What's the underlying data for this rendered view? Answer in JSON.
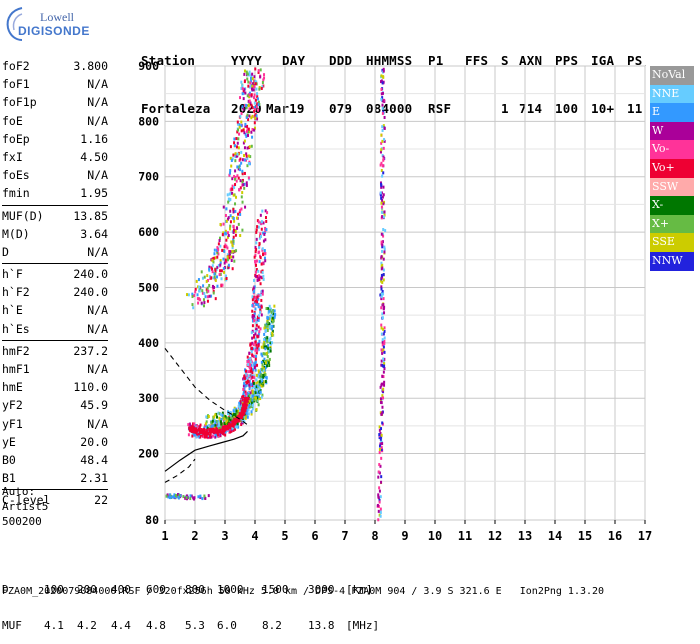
{
  "logo": {
    "line1": "Lowell",
    "line2": "DIGISONDE"
  },
  "header": {
    "labels": [
      "Station",
      "YYYY",
      "DAY",
      "DDD",
      "HHMMSS",
      "P1",
      "FFS",
      "S",
      "AXN",
      "PPS",
      "IGA",
      "PS"
    ],
    "values": [
      "Fortaleza",
      "2020",
      "Mar19",
      "079",
      "084000",
      "RSF",
      "",
      "1",
      "714",
      "100",
      "10+",
      "11"
    ]
  },
  "params": {
    "group1": [
      {
        "name": "foF2",
        "value": "3.800"
      },
      {
        "name": "foF1",
        "value": "N/A"
      },
      {
        "name": "foF1p",
        "value": "N/A"
      },
      {
        "name": "foE",
        "value": "N/A"
      },
      {
        "name": "foEp",
        "value": "1.16"
      },
      {
        "name": "fxI",
        "value": "4.50"
      },
      {
        "name": "foEs",
        "value": "N/A"
      },
      {
        "name": "fmin",
        "value": "1.95"
      }
    ],
    "group2": [
      {
        "name": "MUF(D)",
        "value": "13.85"
      },
      {
        "name": "M(D)",
        "value": "3.64"
      },
      {
        "name": "D",
        "value": "N/A"
      }
    ],
    "group3": [
      {
        "name": "h`F",
        "value": "240.0"
      },
      {
        "name": "h`F2",
        "value": "240.0"
      },
      {
        "name": "h`E",
        "value": "N/A"
      },
      {
        "name": "h`Es",
        "value": "N/A"
      }
    ],
    "group4": [
      {
        "name": "hmF2",
        "value": "237.2"
      },
      {
        "name": "hmF1",
        "value": "N/A"
      },
      {
        "name": "hmE",
        "value": "110.0"
      },
      {
        "name": "yF2",
        "value": "45.9"
      },
      {
        "name": "yF1",
        "value": "N/A"
      },
      {
        "name": "yE",
        "value": "20.0"
      },
      {
        "name": "B0",
        "value": "48.4"
      },
      {
        "name": "B1",
        "value": "2.31"
      }
    ],
    "group5": [
      {
        "name": "C-level",
        "value": "22"
      }
    ]
  },
  "auto": {
    "line1": "Auto:",
    "line2": "Artist5",
    "line3": "500200"
  },
  "legend": [
    {
      "label": "NoVal",
      "color": "#999999"
    },
    {
      "label": "NNE",
      "color": "#66ccff"
    },
    {
      "label": "E",
      "color": "#3399ff"
    },
    {
      "label": "W",
      "color": "#aa0099"
    },
    {
      "label": "Vo-",
      "color": "#ff3399"
    },
    {
      "label": "Vo+",
      "color": "#ee0033"
    },
    {
      "label": "SSW",
      "color": "#ffaaaa"
    },
    {
      "label": "X-",
      "color": "#007700"
    },
    {
      "label": "X+",
      "color": "#66bb44"
    },
    {
      "label": "SSE",
      "color": "#cccc00"
    },
    {
      "label": "NNW",
      "color": "#2222dd"
    }
  ],
  "footer": {
    "d_label": "D",
    "d_values": [
      "100",
      "200",
      "400",
      "600",
      "800",
      "1000",
      "1500",
      "3000",
      "[km]"
    ],
    "muf_label": "MUF",
    "muf_values": [
      "4.1",
      "4.2",
      "4.4",
      "4.8",
      "5.3",
      "6.0",
      "8.2",
      "13.8",
      "[MHz]"
    ],
    "file_line": "FZA0M_2020079084000.RSF / 320fx256h 50 kHz 5.0 km / DPS-4 FZA0M 904 / 3.9 S 321.6 E   Ion2Png 1.3.20"
  },
  "chart_data": {
    "type": "scatter",
    "x_ticks": [
      "1",
      "2",
      "3",
      "4",
      "5",
      "6",
      "7",
      "8",
      "9",
      "10",
      "11",
      "12",
      "13",
      "14",
      "15",
      "16",
      "17"
    ],
    "y_ticks": [
      "80",
      "200",
      "300",
      "400",
      "500",
      "600",
      "700",
      "800",
      "900"
    ],
    "xlim": [
      1,
      17
    ],
    "ylim": [
      80,
      900
    ],
    "grid": true,
    "legend_position": "right",
    "o_trace": [
      [
        1.8,
        248
      ],
      [
        2.0,
        244
      ],
      [
        2.3,
        242
      ],
      [
        2.6,
        243
      ],
      [
        2.9,
        246
      ],
      [
        3.1,
        252
      ],
      [
        3.3,
        260
      ],
      [
        3.5,
        270
      ],
      [
        3.6,
        285
      ],
      [
        3.7,
        300
      ],
      [
        3.75,
        330
      ],
      [
        3.8,
        350
      ],
      [
        3.9,
        380
      ],
      [
        4.0,
        420
      ],
      [
        4.05,
        470
      ],
      [
        4.1,
        520
      ],
      [
        4.15,
        580
      ],
      [
        4.2,
        640
      ]
    ],
    "x_trace": [
      [
        2.4,
        258
      ],
      [
        2.8,
        260
      ],
      [
        3.2,
        265
      ],
      [
        3.6,
        278
      ],
      [
        3.9,
        295
      ],
      [
        4.1,
        320
      ],
      [
        4.25,
        350
      ],
      [
        4.35,
        390
      ],
      [
        4.45,
        430
      ],
      [
        4.5,
        460
      ]
    ],
    "es_trace": [
      [
        1.05,
        125
      ],
      [
        1.3,
        126
      ],
      [
        1.6,
        124
      ],
      [
        2.0,
        123
      ],
      [
        2.4,
        124
      ]
    ],
    "spread_trace": [
      [
        2.0,
        480
      ],
      [
        2.6,
        520
      ],
      [
        3.0,
        560
      ],
      [
        3.2,
        620
      ],
      [
        3.4,
        700
      ],
      [
        3.6,
        780
      ],
      [
        3.8,
        850
      ],
      [
        4.0,
        900
      ]
    ],
    "multi_trace": [
      [
        8.1,
        80
      ],
      [
        8.15,
        200
      ],
      [
        8.2,
        300
      ],
      [
        8.25,
        400
      ],
      [
        8.2,
        500
      ],
      [
        8.25,
        600
      ],
      [
        8.2,
        700
      ],
      [
        8.25,
        800
      ],
      [
        8.2,
        900
      ]
    ],
    "profile_solid": [
      [
        1.0,
        168
      ],
      [
        1.5,
        188
      ],
      [
        2.0,
        206
      ],
      [
        2.5,
        214
      ],
      [
        2.9,
        220
      ],
      [
        3.3,
        226
      ],
      [
        3.6,
        232
      ],
      [
        3.75,
        240
      ]
    ],
    "profile_dashed": [
      [
        1.0,
        390
      ],
      [
        1.5,
        355
      ],
      [
        2.0,
        320
      ],
      [
        2.5,
        296
      ],
      [
        3.0,
        278
      ],
      [
        3.5,
        262
      ],
      [
        3.8,
        250
      ]
    ],
    "profile_lower": [
      [
        1.0,
        148
      ],
      [
        1.4,
        160
      ],
      [
        1.8,
        176
      ],
      [
        2.0,
        190
      ]
    ]
  }
}
